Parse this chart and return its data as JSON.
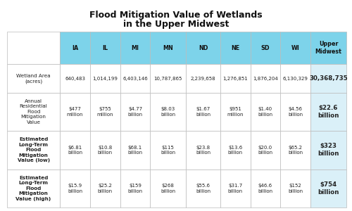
{
  "title_line1": "Flood Mitigation Value of Wetlands",
  "title_line2": "in the Upper Midwest",
  "columns": [
    "IA",
    "IL",
    "MI",
    "MN",
    "ND",
    "NE",
    "SD",
    "WI",
    "Upper\nMidwest"
  ],
  "row_labels": [
    "Wetland Area\n(acres)",
    "Annual\nResidential\nFlood\nMitigation\nValue",
    "Estimated\nLong-Term\nFlood\nMitigation\nValue (low)",
    "Estimated\nLong-Term\nFlood\nMitigation\nValue (high)"
  ],
  "rows": [
    [
      "640,483",
      "1,014,199",
      "6,403,146",
      "10,787,865",
      "2,239,658",
      "1,276,851",
      "1,876,204",
      "6,130,329",
      "30,368,735"
    ],
    [
      "$477\nmillion",
      "$755\nmillion",
      "$4.77\nbillion",
      "$8.03\nbillion",
      "$1.67\nbillion",
      "$951\nmillion",
      "$1.40\nbillion",
      "$4.56\nbillion",
      "$22.6\nbillion"
    ],
    [
      "$6.81\nbillion",
      "$10.8\nbillion",
      "$68.1\nbillion",
      "$115\nbillion",
      "$23.8\nbillion",
      "$13.6\nbillion",
      "$20.0\nbillion",
      "$65.2\nbillion",
      "$323\nbillion"
    ],
    [
      "$15.9\nbillion",
      "$25.2\nbillion",
      "$159\nbillion",
      "$268\nbillion",
      "$55.6\nbillion",
      "$31.7\nbillion",
      "$46.6\nbillion",
      "$152\nbillion",
      "$754\nbillion"
    ]
  ],
  "header_bg": "#7dd3ea",
  "last_col_data_bg": "#daf0f8",
  "border_color": "#bbbbbb",
  "bg_color": "#ffffff",
  "title_fontsize": 9.0,
  "header_fontsize": 5.8,
  "data_fontsize": 5.0,
  "label_fontsize": 5.2,
  "last_col_fontsize": 6.2
}
